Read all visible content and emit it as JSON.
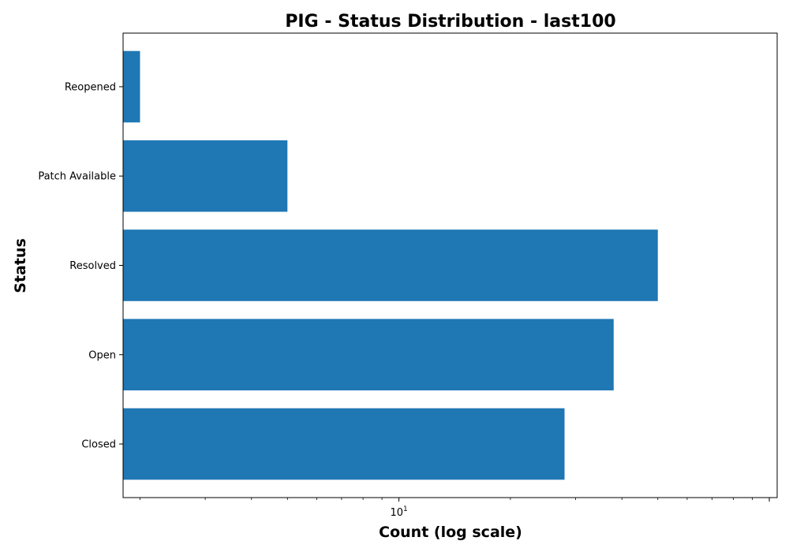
{
  "chart_data": {
    "type": "bar",
    "orientation": "horizontal",
    "title": "PIG - Status Distribution - last100",
    "xlabel": "Count (log scale)",
    "ylabel": "Status",
    "xscale": "log",
    "xlim": [
      1.8,
      105
    ],
    "categories": [
      "Closed",
      "Open",
      "Resolved",
      "Patch Available",
      "Reopened"
    ],
    "values": [
      28,
      38,
      50,
      5,
      2
    ],
    "xticks": [
      {
        "base": "10",
        "exp": "1",
        "value": 10
      }
    ],
    "bar_color": "#1f77b4",
    "grid": false
  }
}
